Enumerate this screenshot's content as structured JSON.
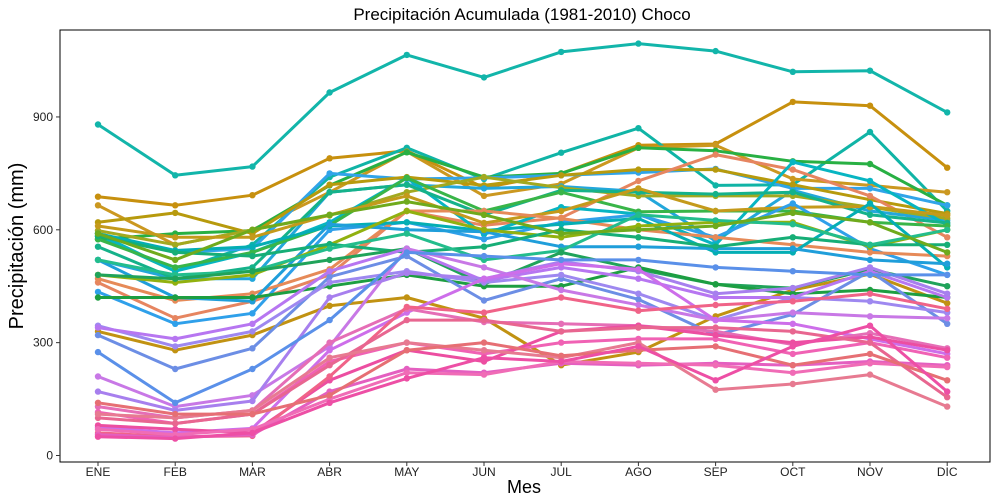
{
  "chart_data": {
    "type": "line",
    "title": "Precipitación Acumulada (1981-2010)  Choco",
    "xlabel": "Mes",
    "ylabel": "Precipitación  (mm)",
    "ylim": [
      0,
      1100
    ],
    "yticks": [
      0,
      300,
      600,
      900
    ],
    "categories": [
      "ENE",
      "FEB",
      "MAR",
      "ABR",
      "MAY",
      "JUN",
      "JUL",
      "AGO",
      "SEP",
      "OCT",
      "NOV",
      "DIC"
    ],
    "grid": false,
    "legend": "none",
    "series": [
      {
        "color": "#12B5AA",
        "values": [
          880,
          745,
          768,
          965,
          1065,
          1005,
          1073,
          1095,
          1075,
          1020,
          1023,
          912
        ]
      },
      {
        "color": "#C7900E",
        "values": [
          688,
          665,
          692,
          790,
          810,
          712,
          750,
          825,
          828,
          940,
          930,
          765
        ]
      },
      {
        "color": "#10B4A6",
        "values": [
          583,
          490,
          560,
          740,
          818,
          735,
          805,
          870,
          718,
          720,
          860,
          650
        ]
      },
      {
        "color": "#CB9820",
        "values": [
          665,
          560,
          600,
          700,
          808,
          690,
          722,
          818,
          825,
          735,
          718,
          700
        ]
      },
      {
        "color": "#28B043",
        "values": [
          575,
          590,
          598,
          718,
          806,
          740,
          750,
          818,
          810,
          782,
          775,
          665
        ]
      },
      {
        "color": "#31A4E9",
        "values": [
          590,
          540,
          550,
          750,
          735,
          738,
          745,
          752,
          762,
          710,
          710,
          665
        ]
      },
      {
        "color": "#B79A0D",
        "values": [
          620,
          645,
          590,
          720,
          740,
          718,
          745,
          760,
          760,
          720,
          680,
          643
        ]
      },
      {
        "color": "#E68560",
        "values": [
          460,
          365,
          410,
          480,
          650,
          612,
          632,
          730,
          800,
          760,
          690,
          580
        ]
      },
      {
        "color": "#23A7DB",
        "values": [
          520,
          470,
          470,
          700,
          720,
          710,
          715,
          702,
          570,
          705,
          650,
          625
        ]
      },
      {
        "color": "#A2A920",
        "values": [
          598,
          560,
          600,
          638,
          700,
          740,
          712,
          690,
          690,
          690,
          660,
          630
        ]
      },
      {
        "color": "#07B5C2",
        "values": [
          590,
          490,
          540,
          620,
          738,
          588,
          660,
          642,
          560,
          780,
          730,
          613
        ]
      },
      {
        "color": "#15B28A",
        "values": [
          555,
          470,
          500,
          700,
          720,
          640,
          705,
          700,
          695,
          700,
          640,
          618
        ]
      },
      {
        "color": "#39B548",
        "values": [
          575,
          500,
          540,
          612,
          738,
          650,
          700,
          648,
          650,
          650,
          620,
          610
        ]
      },
      {
        "color": "#C49A1B",
        "values": [
          610,
          580,
          580,
          640,
          690,
          618,
          650,
          710,
          650,
          660,
          662,
          638
        ]
      },
      {
        "color": "#2FA0EA",
        "values": [
          435,
          350,
          378,
          600,
          620,
          575,
          620,
          640,
          580,
          670,
          550,
          480
        ]
      },
      {
        "color": "#E68A58",
        "values": [
          470,
          412,
          430,
          495,
          650,
          650,
          630,
          600,
          580,
          560,
          540,
          530
        ]
      },
      {
        "color": "#04AEB4",
        "values": [
          590,
          545,
          555,
          610,
          620,
          598,
          615,
          630,
          540,
          540,
          670,
          500
        ]
      },
      {
        "color": "#1F9EDA",
        "values": [
          520,
          420,
          410,
          615,
          600,
          595,
          555,
          555,
          550,
          550,
          520,
          510
        ]
      },
      {
        "color": "#91B10F",
        "values": [
          480,
          460,
          480,
          560,
          650,
          600,
          580,
          610,
          620,
          620,
          555,
          600
        ]
      },
      {
        "color": "#16AE76",
        "values": [
          583,
          540,
          530,
          562,
          540,
          555,
          600,
          580,
          555,
          580,
          560,
          560
        ]
      },
      {
        "color": "#23BD8C",
        "values": [
          520,
          480,
          490,
          550,
          590,
          520,
          545,
          640,
          625,
          615,
          560,
          600
        ]
      },
      {
        "color": "#6FAA1C",
        "values": [
          590,
          520,
          600,
          640,
          675,
          640,
          590,
          600,
          610,
          645,
          620,
          540
        ]
      },
      {
        "color": "#C19212",
        "values": [
          330,
          280,
          320,
          398,
          420,
          365,
          240,
          275,
          370,
          440,
          482,
          405
        ]
      },
      {
        "color": "#20A35A",
        "values": [
          480,
          470,
          490,
          520,
          550,
          455,
          540,
          495,
          455,
          445,
          495,
          450
        ]
      },
      {
        "color": "#1D9E41",
        "values": [
          420,
          420,
          420,
          450,
          480,
          450,
          450,
          500,
          455,
          430,
          440,
          420
        ]
      },
      {
        "color": "#6C8EE5",
        "values": [
          320,
          230,
          285,
          475,
          530,
          412,
          470,
          415,
          320,
          375,
          490,
          350
        ]
      },
      {
        "color": "#9E88F0",
        "values": [
          345,
          290,
          330,
          460,
          490,
          460,
          480,
          430,
          360,
          420,
          410,
          380
        ]
      },
      {
        "color": "#B776F1",
        "values": [
          340,
          310,
          350,
          490,
          550,
          465,
          500,
          470,
          420,
          420,
          490,
          420
        ]
      },
      {
        "color": "#C878E6",
        "values": [
          210,
          130,
          160,
          290,
          550,
          500,
          440,
          400,
          360,
          380,
          370,
          365
        ]
      },
      {
        "color": "#A77FEE",
        "values": [
          170,
          120,
          145,
          420,
          485,
          470,
          515,
          490,
          430,
          445,
          500,
          430
        ]
      },
      {
        "color": "#CD6EEA",
        "values": [
          75,
          60,
          72,
          280,
          380,
          470,
          510,
          495,
          360,
          350,
          310,
          270
        ]
      },
      {
        "color": "#5A90E9",
        "values": [
          275,
          140,
          230,
          360,
          540,
          530,
          520,
          520,
          500,
          490,
          480,
          480
        ]
      },
      {
        "color": "#E56EB6",
        "values": [
          130,
          100,
          120,
          300,
          390,
          355,
          350,
          345,
          330,
          295,
          325,
          285
        ]
      },
      {
        "color": "#F062B4",
        "values": [
          115,
          85,
          110,
          250,
          300,
          270,
          300,
          310,
          310,
          270,
          300,
          260
        ]
      },
      {
        "color": "#EC4EA1",
        "values": [
          80,
          70,
          60,
          200,
          280,
          250,
          330,
          345,
          320,
          300,
          315,
          280
        ]
      },
      {
        "color": "#F06388",
        "values": [
          60,
          50,
          52,
          210,
          395,
          380,
          420,
          385,
          400,
          410,
          430,
          390
        ]
      },
      {
        "color": "#E45FC0",
        "values": [
          55,
          48,
          55,
          170,
          230,
          220,
          245,
          240,
          245,
          240,
          250,
          240
        ]
      },
      {
        "color": "#E86690",
        "values": [
          100,
          85,
          110,
          240,
          360,
          360,
          330,
          340,
          340,
          330,
          300,
          155
        ]
      },
      {
        "color": "#F06CB6",
        "values": [
          70,
          55,
          70,
          150,
          220,
          215,
          250,
          245,
          240,
          220,
          245,
          235
        ]
      },
      {
        "color": "#E77A91",
        "values": [
          110,
          100,
          120,
          260,
          300,
          280,
          260,
          300,
          175,
          190,
          215,
          130
        ]
      },
      {
        "color": "#E66F74",
        "values": [
          140,
          110,
          110,
          160,
          280,
          300,
          265,
          280,
          290,
          240,
          270,
          200
        ]
      },
      {
        "color": "#ED4FA5",
        "values": [
          50,
          45,
          60,
          140,
          205,
          260,
          250,
          290,
          200,
          290,
          345,
          170
        ]
      }
    ]
  }
}
